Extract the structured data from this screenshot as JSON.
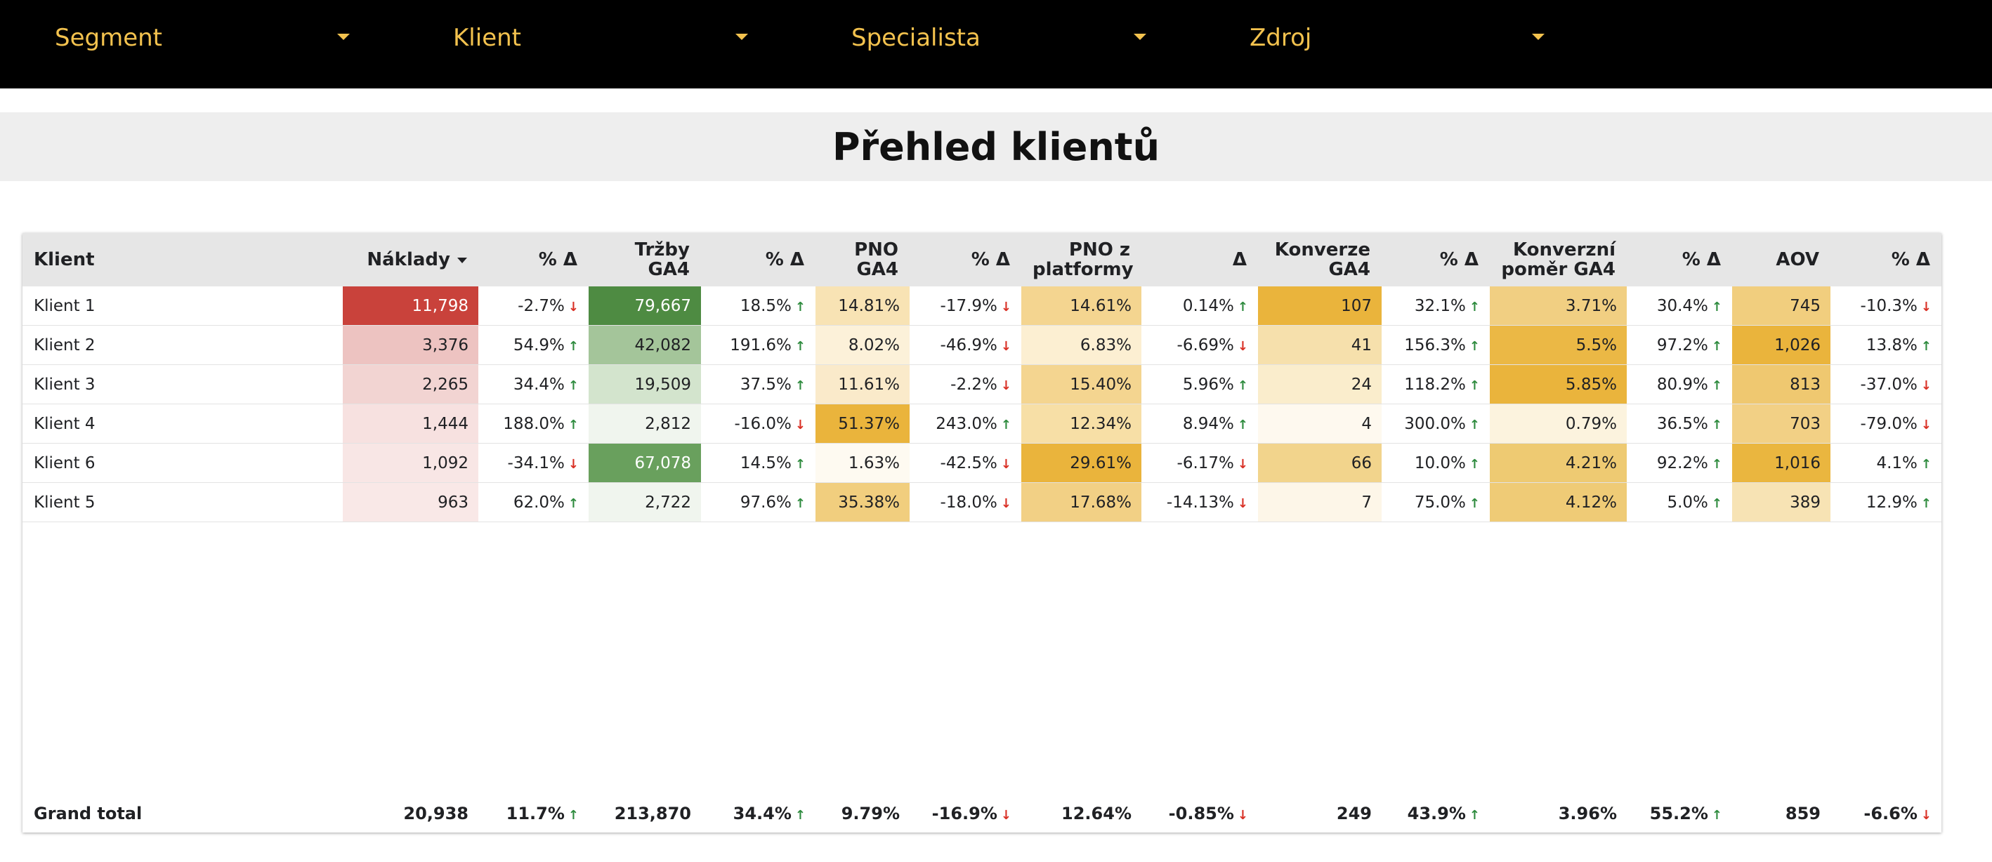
{
  "filters": [
    {
      "label": "Segment"
    },
    {
      "label": "Klient"
    },
    {
      "label": "Specialista"
    },
    {
      "label": "Zdroj"
    }
  ],
  "title": "Přehled klientů",
  "table": {
    "columns": [
      {
        "label": "Klient",
        "align": "left"
      },
      {
        "label": "Náklady",
        "sorted": "desc"
      },
      {
        "label": "% Δ"
      },
      {
        "label": "Tržby GA4"
      },
      {
        "label": "% Δ"
      },
      {
        "label": "PNO GA4"
      },
      {
        "label": "% Δ"
      },
      {
        "label": "PNO z platformy"
      },
      {
        "label": "Δ"
      },
      {
        "label": "Konverze GA4"
      },
      {
        "label": "% Δ"
      },
      {
        "label": "Konverzní poměr GA4"
      },
      {
        "label": "% Δ"
      },
      {
        "label": "AOV"
      },
      {
        "label": "% Δ"
      }
    ],
    "rows": [
      {
        "cells": [
          {
            "v": "Klient 1"
          },
          {
            "v": "11,798",
            "bg": "#C9423B",
            "fg": "#ffffff"
          },
          {
            "v": "-2.7%",
            "dir": "down"
          },
          {
            "v": "79,667",
            "bg": "#4E8B42",
            "fg": "#ffffff"
          },
          {
            "v": "18.5%",
            "dir": "up"
          },
          {
            "v": "14.81%",
            "bg": "#F8E3B4"
          },
          {
            "v": "-17.9%",
            "dir": "down"
          },
          {
            "v": "14.61%",
            "bg": "#F4D590"
          },
          {
            "v": "0.14%",
            "dir": "up"
          },
          {
            "v": "107",
            "bg": "#EAB43C"
          },
          {
            "v": "32.1%",
            "dir": "up"
          },
          {
            "v": "3.71%",
            "bg": "#F1CF82"
          },
          {
            "v": "30.4%",
            "dir": "up"
          },
          {
            "v": "745",
            "bg": "#F1CE7E"
          },
          {
            "v": "-10.3%",
            "dir": "down"
          }
        ]
      },
      {
        "cells": [
          {
            "v": "Klient 2"
          },
          {
            "v": "3,376",
            "bg": "#EDC3C1"
          },
          {
            "v": "54.9%",
            "dir": "up"
          },
          {
            "v": "42,082",
            "bg": "#A4C59A"
          },
          {
            "v": "191.6%",
            "dir": "up"
          },
          {
            "v": "8.02%",
            "bg": "#FCF1D9"
          },
          {
            "v": "-46.9%",
            "dir": "down"
          },
          {
            "v": "6.83%",
            "bg": "#FCEFD2"
          },
          {
            "v": "-6.69%",
            "dir": "down"
          },
          {
            "v": "41",
            "bg": "#F6E0AC"
          },
          {
            "v": "156.3%",
            "dir": "up"
          },
          {
            "v": "5.5%",
            "bg": "#EBB845"
          },
          {
            "v": "97.2%",
            "dir": "up"
          },
          {
            "v": "1,026",
            "bg": "#EAB43C"
          },
          {
            "v": "13.8%",
            "dir": "up"
          }
        ]
      },
      {
        "cells": [
          {
            "v": "Klient 3"
          },
          {
            "v": "2,265",
            "bg": "#F2D4D2"
          },
          {
            "v": "34.4%",
            "dir": "up"
          },
          {
            "v": "19,509",
            "bg": "#D3E4CD"
          },
          {
            "v": "37.5%",
            "dir": "up"
          },
          {
            "v": "11.61%",
            "bg": "#FAEACA"
          },
          {
            "v": "-2.2%",
            "dir": "down"
          },
          {
            "v": "15.40%",
            "bg": "#F4D590"
          },
          {
            "v": "5.96%",
            "dir": "up"
          },
          {
            "v": "24",
            "bg": "#FAEDCC"
          },
          {
            "v": "118.2%",
            "dir": "up"
          },
          {
            "v": "5.85%",
            "bg": "#EAB43C"
          },
          {
            "v": "80.9%",
            "dir": "up"
          },
          {
            "v": "813",
            "bg": "#EFC870"
          },
          {
            "v": "-37.0%",
            "dir": "down"
          }
        ]
      },
      {
        "cells": [
          {
            "v": "Klient 4"
          },
          {
            "v": "1,444",
            "bg": "#F7E1E0"
          },
          {
            "v": "188.0%",
            "dir": "up"
          },
          {
            "v": "2,812",
            "bg": "#F0F5EE"
          },
          {
            "v": "-16.0%",
            "dir": "down"
          },
          {
            "v": "51.37%",
            "bg": "#EAB43C"
          },
          {
            "v": "243.0%",
            "dir": "up"
          },
          {
            "v": "12.34%",
            "bg": "#F7DFA6"
          },
          {
            "v": "8.94%",
            "dir": "up"
          },
          {
            "v": "4",
            "bg": "#FEF9EF"
          },
          {
            "v": "300.0%",
            "dir": "up"
          },
          {
            "v": "0.79%",
            "bg": "#FCF3DE"
          },
          {
            "v": "36.5%",
            "dir": "up"
          },
          {
            "v": "703",
            "bg": "#F2D085"
          },
          {
            "v": "-79.0%",
            "dir": "down"
          }
        ]
      },
      {
        "cells": [
          {
            "v": "Klient 6"
          },
          {
            "v": "1,092",
            "bg": "#F8E6E5"
          },
          {
            "v": "-34.1%",
            "dir": "down"
          },
          {
            "v": "67,078",
            "bg": "#69A05D",
            "fg": "#ffffff"
          },
          {
            "v": "14.5%",
            "dir": "up"
          },
          {
            "v": "1.63%",
            "bg": "#FEFAF1"
          },
          {
            "v": "-42.5%",
            "dir": "down"
          },
          {
            "v": "29.61%",
            "bg": "#EAB43C"
          },
          {
            "v": "-6.17%",
            "dir": "down"
          },
          {
            "v": "66",
            "bg": "#F2D48C"
          },
          {
            "v": "10.0%",
            "dir": "up"
          },
          {
            "v": "4.21%",
            "bg": "#EECA72"
          },
          {
            "v": "92.2%",
            "dir": "up"
          },
          {
            "v": "1,016",
            "bg": "#EAB63F"
          },
          {
            "v": "4.1%",
            "dir": "up"
          }
        ]
      },
      {
        "cells": [
          {
            "v": "Klient 5"
          },
          {
            "v": "963",
            "bg": "#F9E8E7"
          },
          {
            "v": "62.0%",
            "dir": "up"
          },
          {
            "v": "2,722",
            "bg": "#F0F5EE"
          },
          {
            "v": "97.6%",
            "dir": "up"
          },
          {
            "v": "35.38%",
            "bg": "#F1CE7E"
          },
          {
            "v": "-18.0%",
            "dir": "down"
          },
          {
            "v": "17.68%",
            "bg": "#F2D085"
          },
          {
            "v": "-14.13%",
            "dir": "down"
          },
          {
            "v": "7",
            "bg": "#FDF6E8"
          },
          {
            "v": "75.0%",
            "dir": "up"
          },
          {
            "v": "4.12%",
            "bg": "#EFCB76"
          },
          {
            "v": "5.0%",
            "dir": "up"
          },
          {
            "v": "389",
            "bg": "#F7E3B4"
          },
          {
            "v": "12.9%",
            "dir": "up"
          }
        ]
      }
    ],
    "grand_total": [
      {
        "v": "Grand total"
      },
      {
        "v": "20,938"
      },
      {
        "v": "11.7%",
        "dir": "up"
      },
      {
        "v": "213,870"
      },
      {
        "v": "34.4%",
        "dir": "up"
      },
      {
        "v": "9.79%"
      },
      {
        "v": "-16.9%",
        "dir": "down"
      },
      {
        "v": "12.64%"
      },
      {
        "v": "-0.85%",
        "dir": "down"
      },
      {
        "v": "249"
      },
      {
        "v": "43.9%",
        "dir": "up"
      },
      {
        "v": "3.96%"
      },
      {
        "v": "55.2%",
        "dir": "up"
      },
      {
        "v": "859"
      },
      {
        "v": "-6.6%",
        "dir": "down"
      }
    ]
  },
  "colors": {
    "filter_text": "#F3C24E",
    "filter_bar": "#000000",
    "title_band": "#EEEEEE",
    "header_bg": "#E6E6E6",
    "arrow_up": "#2E8B3E",
    "arrow_down": "#D93025"
  }
}
